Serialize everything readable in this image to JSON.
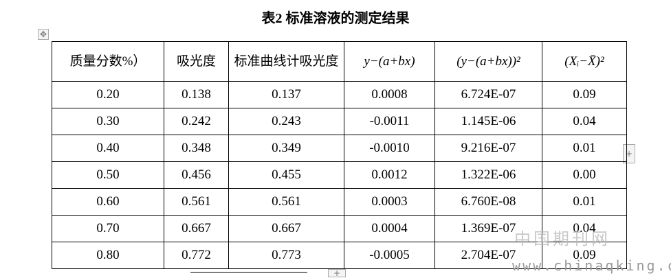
{
  "title": "表2 标准溶液的测定结果",
  "table": {
    "header": [
      "质量分数%）",
      "吸光度",
      "标准曲线计吸光度",
      "y−(a+bx)",
      "(y−(a+bx))²",
      "(Xᵢ−X̄)²"
    ],
    "rows": [
      [
        "0.20",
        "0.138",
        "0.137",
        "0.0008",
        "6.724E-07",
        "0.09"
      ],
      [
        "0.30",
        "0.242",
        "0.243",
        "-0.0011",
        "1.145E-06",
        "0.04"
      ],
      [
        "0.40",
        "0.348",
        "0.349",
        "-0.0010",
        "9.216E-07",
        "0.01"
      ],
      [
        "0.50",
        "0.456",
        "0.455",
        "0.0012",
        "1.322E-06",
        "0.00"
      ],
      [
        "0.60",
        "0.561",
        "0.561",
        "0.0003",
        "6.760E-08",
        "0.01"
      ],
      [
        "0.70",
        "0.667",
        "0.667",
        "0.0004",
        "1.369E-07",
        "0.04"
      ],
      [
        "0.80",
        "0.772",
        "0.773",
        "-0.0005",
        "2.704E-07",
        "0.09"
      ]
    ]
  },
  "watermark": {
    "name": "中国期刊网",
    "url": "www.chinaqking.com"
  }
}
